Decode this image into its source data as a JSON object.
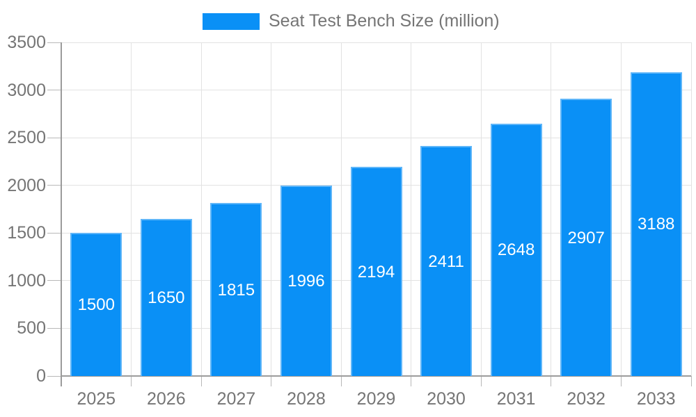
{
  "legend": {
    "label": "Seat Test Bench Size (million)"
  },
  "chart_data": {
    "type": "bar",
    "title": "Seat Test Bench Size (million)",
    "categories": [
      "2025",
      "2026",
      "2027",
      "2028",
      "2029",
      "2030",
      "2031",
      "2032",
      "2033"
    ],
    "values": [
      1500,
      1650,
      1815,
      1996,
      2194,
      2411,
      2648,
      2907,
      3188
    ],
    "series_name": "Seat Test Bench Size (million)",
    "xlabel": "",
    "ylabel": "",
    "ylim": [
      0,
      3500
    ],
    "ytick_step": 500,
    "ytick_labels": [
      "0",
      "500",
      "1000",
      "1500",
      "2000",
      "2500",
      "3000",
      "3500"
    ],
    "grid": true,
    "legend_position": "top-center",
    "value_labels": "inside-center"
  },
  "colors": {
    "bar": "#0A90F6",
    "grid": "#E2E2E2",
    "axis": "#9B9B9B",
    "tick": "#B8B8B8",
    "text": "#757575",
    "value_label": "#FFFFFF",
    "background": "#FFFFFF"
  }
}
